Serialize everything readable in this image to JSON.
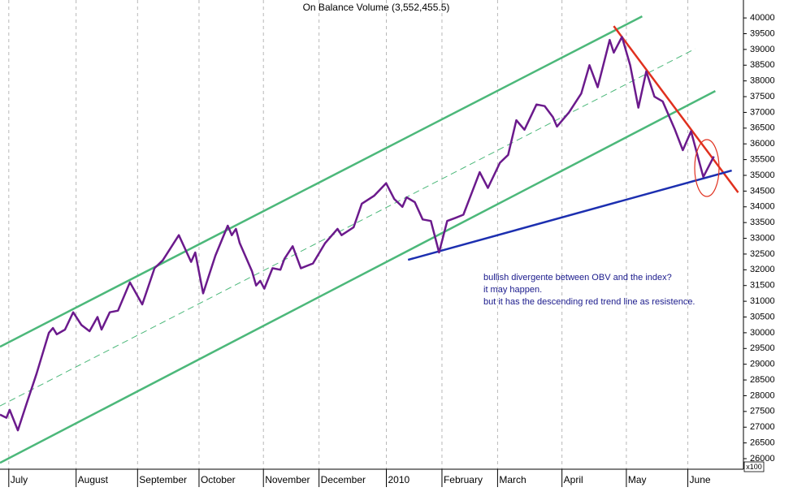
{
  "chart_data": {
    "type": "line",
    "title": "On Balance Volume (3,552,455.5)",
    "scale_note": "x100",
    "xlim": [
      0,
      254
    ],
    "xticks": [
      {
        "value": 3,
        "label": "July"
      },
      {
        "value": 26,
        "label": "August"
      },
      {
        "value": 47,
        "label": "September"
      },
      {
        "value": 68,
        "label": "October"
      },
      {
        "value": 90,
        "label": "November"
      },
      {
        "value": 109,
        "label": "December"
      },
      {
        "value": 132,
        "label": "2010"
      },
      {
        "value": 151,
        "label": "February"
      },
      {
        "value": 170,
        "label": "March"
      },
      {
        "value": 192,
        "label": "April"
      },
      {
        "value": 214,
        "label": "May"
      },
      {
        "value": 235,
        "label": "June"
      }
    ],
    "ylim": [
      25665,
      40570
    ],
    "yticks": [
      26000,
      26500,
      27000,
      27500,
      28000,
      28500,
      29000,
      29500,
      30000,
      30500,
      31000,
      31500,
      32000,
      32500,
      33000,
      33500,
      34000,
      34500,
      35000,
      35500,
      36000,
      36500,
      37000,
      37500,
      38000,
      38500,
      39000,
      39500,
      40000
    ],
    "grid": true,
    "series": [
      {
        "color": "#6b1a8c",
        "x": [
          0,
          2.2,
          3.3,
          6.1,
          8.9,
          12.5,
          16.7,
          18.1,
          19.4,
          22.2,
          25,
          27.8,
          30.6,
          33.3,
          34.7,
          37.5,
          40.3,
          44.4,
          48.6,
          52.8,
          55.6,
          61.1,
          65.3,
          66.7,
          69.4,
          73.6,
          77.8,
          79.2,
          80.6,
          81.9,
          86.1,
          87.5,
          88.9,
          90.3,
          93.1,
          95.8,
          97.2,
          100,
          102.8,
          106.9,
          111.1,
          115.3,
          116.7,
          120.8,
          123.6,
          127.8,
          131.9,
          134.7,
          137.5,
          138.9,
          141.7,
          144.4,
          147.2,
          150,
          152.8,
          155.6,
          158.3,
          163.9,
          166.7,
          170.8,
          173.6,
          176.4,
          179.2,
          183.3,
          186.1,
          188.9,
          190.3,
          194.4,
          198.6,
          201.4,
          204.2,
          208.3,
          209.7,
          212.5,
          215.3,
          218.1,
          220.8,
          223.6,
          226.4,
          230.6,
          233.3,
          236.1,
          240.3,
          243.9
        ],
        "values": [
          27400,
          27300,
          27550,
          26900,
          27700,
          28700,
          30000,
          30150,
          29950,
          30100,
          30650,
          30250,
          30050,
          30500,
          30100,
          30650,
          30700,
          31600,
          30900,
          32050,
          32300,
          33100,
          32250,
          32550,
          31250,
          32450,
          33400,
          33100,
          33300,
          32850,
          31950,
          31500,
          31650,
          31400,
          32050,
          32000,
          32350,
          32750,
          32050,
          32200,
          32850,
          33300,
          33100,
          33350,
          34100,
          34350,
          34750,
          34250,
          34000,
          34300,
          34150,
          33600,
          33550,
          32550,
          33550,
          33650,
          33750,
          35100,
          34600,
          35400,
          35650,
          36750,
          36450,
          37250,
          37200,
          36850,
          36550,
          37000,
          37600,
          38500,
          37800,
          39300,
          38900,
          39400,
          38500,
          37150,
          38300,
          37500,
          37350,
          36450,
          35800,
          36400,
          34950,
          35600
        ]
      }
    ],
    "trendlines": [
      {
        "color": "#4cb87a",
        "dashed": false,
        "x": [
          0,
          219.4
        ],
        "values": [
          29557,
          40052
        ]
      },
      {
        "color": "#4cb87a",
        "dashed": true,
        "x": [
          0,
          237.5
        ],
        "values": [
          27674,
          39020
        ]
      },
      {
        "color": "#4cb87a",
        "dashed": false,
        "x": [
          0,
          244.4
        ],
        "values": [
          25869,
          37679
        ]
      },
      {
        "color": "#e0301e",
        "dashed": false,
        "x": [
          209.7,
          252.2
        ],
        "values": [
          39742,
          34456
        ]
      },
      {
        "color": "#1c2fb0",
        "dashed": false,
        "x": [
          139.4,
          250
        ],
        "values": [
          32316,
          35152
        ]
      }
    ],
    "annotations": [
      "bullish divergente between OBV and the index?",
      "it may happen.",
      "but it has the descending red trend line as resistence."
    ]
  }
}
